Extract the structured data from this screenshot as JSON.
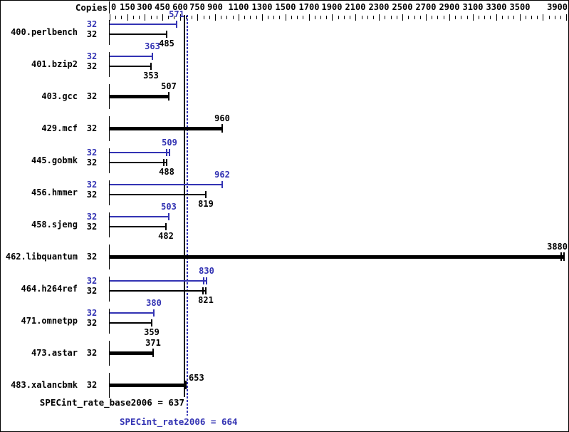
{
  "header": {
    "copies_label": "Copies"
  },
  "axis": {
    "labeled_ticks": [
      0,
      150,
      300,
      450,
      600,
      750,
      900,
      1100,
      1300,
      1500,
      1700,
      1900,
      2100,
      2300,
      2500,
      2700,
      2900,
      3100,
      3300,
      3500,
      3900
    ],
    "unlabeled_major_ticks": [
      3700
    ],
    "minor_step": 50,
    "max_tick": 3900,
    "position": "top"
  },
  "colors": {
    "peak": "#3333b3",
    "base": "#000000",
    "background": "#ffffff",
    "border": "#000000"
  },
  "reference_lines": {
    "base_value": 637,
    "base_style": "solid",
    "peak_value": 664,
    "peak_style": "dotted"
  },
  "summary": {
    "base_text": "SPECint_rate_base2006 = 637",
    "peak_text": "SPECint_rate2006 = 664"
  },
  "benchmarks": [
    {
      "name": "400.perlbench",
      "bars": [
        {
          "series": "peak",
          "copies": "32",
          "value": 571,
          "cap": "single",
          "label_pos": "above"
        },
        {
          "series": "base",
          "copies": "32",
          "value": 485,
          "cap": "single",
          "label_pos": "below"
        }
      ]
    },
    {
      "name": "401.bzip2",
      "bars": [
        {
          "series": "peak",
          "copies": "32",
          "value": 363,
          "cap": "single",
          "label_pos": "above"
        },
        {
          "series": "base",
          "copies": "32",
          "value": 353,
          "cap": "single",
          "label_pos": "below"
        }
      ]
    },
    {
      "name": "403.gcc",
      "bars": [
        {
          "series": "both",
          "copies": "32",
          "value": 507,
          "cap": "single",
          "label_pos": "above"
        }
      ]
    },
    {
      "name": "429.mcf",
      "bars": [
        {
          "series": "both",
          "copies": "32",
          "value": 960,
          "cap": "single",
          "label_pos": "above"
        }
      ]
    },
    {
      "name": "445.gobmk",
      "bars": [
        {
          "series": "peak",
          "copies": "32",
          "value": 509,
          "cap": "double",
          "label_pos": "above"
        },
        {
          "series": "base",
          "copies": "32",
          "value": 488,
          "cap": "double",
          "label_pos": "below"
        }
      ]
    },
    {
      "name": "456.hmmer",
      "bars": [
        {
          "series": "peak",
          "copies": "32",
          "value": 962,
          "cap": "single",
          "label_pos": "above"
        },
        {
          "series": "base",
          "copies": "32",
          "value": 819,
          "cap": "single",
          "label_pos": "below"
        }
      ]
    },
    {
      "name": "458.sjeng",
      "bars": [
        {
          "series": "peak",
          "copies": "32",
          "value": 503,
          "cap": "single",
          "label_pos": "above"
        },
        {
          "series": "base",
          "copies": "32",
          "value": 482,
          "cap": "single",
          "label_pos": "below"
        }
      ]
    },
    {
      "name": "462.libquantum",
      "bars": [
        {
          "series": "both",
          "copies": "32",
          "value": 3880,
          "cap": "double",
          "label_pos": "above"
        }
      ]
    },
    {
      "name": "464.h264ref",
      "bars": [
        {
          "series": "peak",
          "copies": "32",
          "value": 830,
          "cap": "double",
          "label_pos": "above"
        },
        {
          "series": "base",
          "copies": "32",
          "value": 821,
          "cap": "double",
          "label_pos": "below"
        }
      ]
    },
    {
      "name": "471.omnetpp",
      "bars": [
        {
          "series": "peak",
          "copies": "32",
          "value": 380,
          "cap": "single",
          "label_pos": "above"
        },
        {
          "series": "base",
          "copies": "32",
          "value": 359,
          "cap": "single",
          "label_pos": "below"
        }
      ]
    },
    {
      "name": "473.astar",
      "bars": [
        {
          "series": "both",
          "copies": "32",
          "value": 371,
          "cap": "single",
          "label_pos": "above"
        }
      ]
    },
    {
      "name": "483.xalancbmk",
      "bars": [
        {
          "series": "both",
          "copies": "32",
          "value": 653,
          "cap": "single",
          "label_pos": "right"
        }
      ]
    }
  ],
  "chart_data": {
    "type": "bar",
    "orientation": "horizontal",
    "categories": [
      "400.perlbench",
      "401.bzip2",
      "403.gcc",
      "429.mcf",
      "445.gobmk",
      "456.hmmer",
      "458.sjeng",
      "462.libquantum",
      "464.h264ref",
      "471.omnetpp",
      "473.astar",
      "483.xalancbmk"
    ],
    "copies": [
      32,
      32,
      32,
      32,
      32,
      32,
      32,
      32,
      32,
      32,
      32,
      32
    ],
    "series": [
      {
        "name": "peak",
        "color": "#3333b3",
        "values": [
          571,
          363,
          507,
          960,
          509,
          962,
          503,
          3880,
          830,
          380,
          371,
          653
        ]
      },
      {
        "name": "base",
        "color": "#000000",
        "values": [
          485,
          353,
          507,
          960,
          488,
          819,
          482,
          3880,
          821,
          359,
          371,
          653
        ]
      }
    ],
    "single_bar_rows": [
      "403.gcc",
      "429.mcf",
      "462.libquantum",
      "473.astar",
      "483.xalancbmk"
    ],
    "x_axis": {
      "position": "top",
      "range": [
        0,
        3930
      ],
      "labeled_ticks": [
        0,
        150,
        300,
        450,
        600,
        750,
        900,
        1100,
        1300,
        1500,
        1700,
        1900,
        2100,
        2300,
        2500,
        2700,
        2900,
        3100,
        3300,
        3500,
        3900
      ],
      "minor_tick_step": 50,
      "copies_column_header": "Copies"
    },
    "annotations": [
      {
        "text": "SPECint_rate_base2006 = 637",
        "value": 637,
        "line_style": "solid",
        "color": "#000000"
      },
      {
        "text": "SPECint_rate2006 = 664",
        "value": 664,
        "line_style": "dotted",
        "color": "#3333b3"
      }
    ],
    "grid": false,
    "legend": "none"
  }
}
